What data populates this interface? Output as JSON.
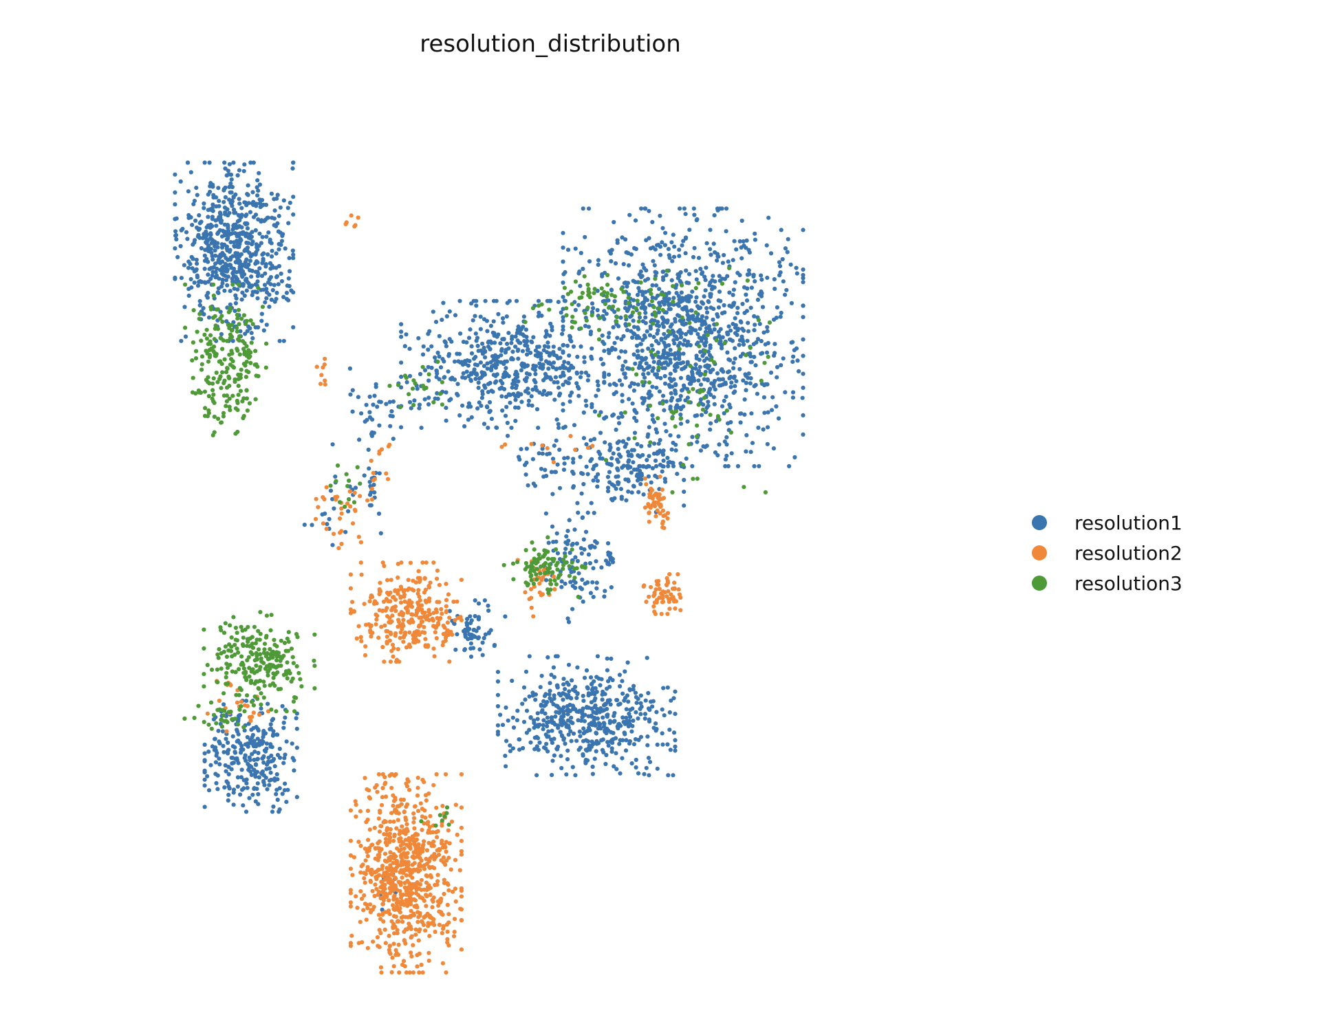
{
  "chart_data": {
    "type": "scatter",
    "title": "resolution_distribution",
    "xlabel": "",
    "ylabel": "",
    "axes_visible": false,
    "grid": false,
    "legend_position": "right",
    "xlim": [
      0,
      100
    ],
    "ylim": [
      0,
      100
    ],
    "series": [
      {
        "name": "resolution1",
        "color": "#3a75b0",
        "clusters": [
          {
            "cx": 11.5,
            "cy": 83.5,
            "sx": 3.2,
            "sy": 4.5,
            "n": 650
          },
          {
            "cx": 13.5,
            "cy": 27.5,
            "sx": 2.5,
            "sy": 2.8,
            "n": 280
          },
          {
            "cx": 53.5,
            "cy": 32.0,
            "sx": 4.8,
            "sy": 3.0,
            "n": 500
          },
          {
            "cx": 65.0,
            "cy": 74.0,
            "sx": 6.5,
            "sy": 6.5,
            "n": 1150
          },
          {
            "cx": 43.5,
            "cy": 71.0,
            "sx": 5.5,
            "sy": 3.2,
            "n": 500
          },
          {
            "cx": 58.5,
            "cy": 59.0,
            "sx": 3.0,
            "sy": 2.0,
            "n": 150
          },
          {
            "cx": 52.5,
            "cy": 49.0,
            "sx": 1.8,
            "sy": 3.0,
            "n": 90
          },
          {
            "cx": 40.5,
            "cy": 41.5,
            "sx": 1.5,
            "sy": 1.5,
            "n": 60
          },
          {
            "cx": 28.5,
            "cy": 66.5,
            "sx": 1.8,
            "sy": 2.0,
            "n": 40
          },
          {
            "cx": 28.0,
            "cy": 58.0,
            "sx": 0.6,
            "sy": 1.2,
            "n": 15
          },
          {
            "cx": 48.5,
            "cy": 60.5,
            "sx": 2.0,
            "sy": 2.0,
            "n": 40
          },
          {
            "cx": 56.0,
            "cy": 49.5,
            "sx": 0.5,
            "sy": 0.4,
            "n": 12
          },
          {
            "cx": 23.5,
            "cy": 56.5,
            "sx": 2.5,
            "sy": 3.5,
            "n": 25
          },
          {
            "cx": 30.0,
            "cy": 12.5,
            "sx": 1.0,
            "sy": 1.2,
            "n": 10
          }
        ]
      },
      {
        "name": "resolution2",
        "color": "#f0883a",
        "clusters": [
          {
            "cx": 32.0,
            "cy": 14.5,
            "sx": 3.0,
            "sy": 5.0,
            "n": 750
          },
          {
            "cx": 32.0,
            "cy": 43.5,
            "sx": 3.0,
            "sy": 2.5,
            "n": 280
          },
          {
            "cx": 62.0,
            "cy": 55.5,
            "sx": 0.8,
            "sy": 1.5,
            "n": 50
          },
          {
            "cx": 62.5,
            "cy": 45.5,
            "sx": 1.0,
            "sy": 1.0,
            "n": 60
          },
          {
            "cx": 24.5,
            "cy": 55.0,
            "sx": 1.8,
            "sy": 2.0,
            "n": 35
          },
          {
            "cx": 12.0,
            "cy": 33.0,
            "sx": 1.8,
            "sy": 1.5,
            "n": 25
          },
          {
            "cx": 36.5,
            "cy": 41.5,
            "sx": 0.8,
            "sy": 0.5,
            "n": 15
          },
          {
            "cx": 47.5,
            "cy": 46.0,
            "sx": 1.0,
            "sy": 1.5,
            "n": 30
          },
          {
            "cx": 50.0,
            "cy": 62.0,
            "sx": 3.0,
            "sy": 1.0,
            "n": 10
          },
          {
            "cx": 25.5,
            "cy": 87.0,
            "sx": 0.6,
            "sy": 0.4,
            "n": 6
          },
          {
            "cx": 22.0,
            "cy": 69.0,
            "sx": 0.6,
            "sy": 1.5,
            "n": 8
          },
          {
            "cx": 29.0,
            "cy": 61.0,
            "sx": 0.8,
            "sy": 2.0,
            "n": 10
          }
        ]
      },
      {
        "name": "resolution3",
        "color": "#4e9a37",
        "clusters": [
          {
            "cx": 10.5,
            "cy": 71.5,
            "sx": 2.2,
            "sy": 3.8,
            "n": 210
          },
          {
            "cx": 14.5,
            "cy": 38.0,
            "sx": 3.0,
            "sy": 2.5,
            "n": 230
          },
          {
            "cx": 48.5,
            "cy": 48.5,
            "sx": 2.2,
            "sy": 1.5,
            "n": 90
          },
          {
            "cx": 55.0,
            "cy": 78.0,
            "sx": 4.0,
            "sy": 1.5,
            "n": 70
          },
          {
            "cx": 66.0,
            "cy": 70.0,
            "sx": 5.0,
            "sy": 6.0,
            "n": 80
          },
          {
            "cx": 33.0,
            "cy": 68.0,
            "sx": 1.5,
            "sy": 1.5,
            "n": 20
          },
          {
            "cx": 24.5,
            "cy": 57.5,
            "sx": 1.0,
            "sy": 1.5,
            "n": 12
          },
          {
            "cx": 10.0,
            "cy": 32.0,
            "sx": 2.0,
            "sy": 0.8,
            "n": 25
          },
          {
            "cx": 36.0,
            "cy": 20.5,
            "sx": 1.0,
            "sy": 0.6,
            "n": 8
          }
        ]
      }
    ]
  }
}
